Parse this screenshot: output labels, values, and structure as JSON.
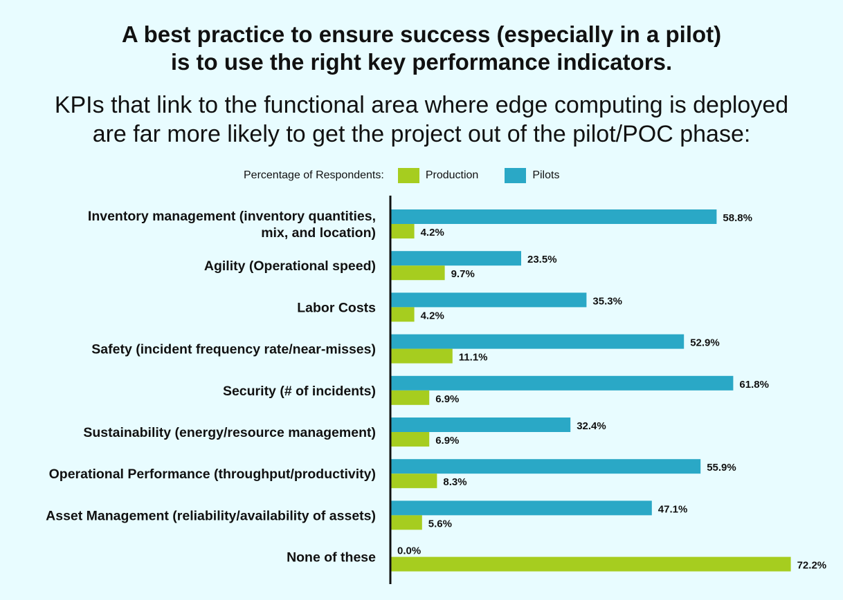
{
  "header": {
    "headline_line1": "A best practice to ensure success (especially in a pilot)",
    "headline_line2": "is to use the right key performance indicators.",
    "subhead_line1": "KPIs that link to the functional area where edge computing is deployed",
    "subhead_line2": "are far more likely to get the project out of the pilot/POC phase:"
  },
  "legend": {
    "title": "Percentage of Respondents:",
    "items": [
      {
        "label": "Production",
        "color": "#a6cd1f"
      },
      {
        "label": "Pilots",
        "color": "#2aa8c6"
      }
    ]
  },
  "chart_data": {
    "type": "bar",
    "orientation": "horizontal",
    "title": "Percentage of Respondents",
    "xlim": [
      0,
      75
    ],
    "categories": [
      [
        "Inventory management (inventory quantities,",
        "mix, and location)"
      ],
      [
        "Agility (Operational speed)"
      ],
      [
        "Labor Costs"
      ],
      [
        "Safety (incident frequency rate/near-misses)"
      ],
      [
        "Security (# of incidents)"
      ],
      [
        "Sustainability (energy/resource management)"
      ],
      [
        "Operational Performance (throughput/productivity)"
      ],
      [
        "Asset Management (reliability/availability of assets)"
      ],
      [
        "None of these"
      ]
    ],
    "series": [
      {
        "name": "Pilots",
        "color": "#2aa8c6",
        "values": [
          58.8,
          23.5,
          35.3,
          52.9,
          61.8,
          32.4,
          55.9,
          47.1,
          0.0
        ],
        "labels": [
          "58.8%",
          "23.5%",
          "35.3%",
          "52.9%",
          "61.8%",
          "32.4%",
          "55.9%",
          "47.1%",
          "0.0%"
        ]
      },
      {
        "name": "Production",
        "color": "#a6cd1f",
        "values": [
          4.2,
          9.7,
          4.2,
          11.1,
          6.9,
          6.9,
          8.3,
          5.6,
          72.2
        ],
        "labels": [
          "4.2%",
          "9.7%",
          "4.2%",
          "11.1%",
          "6.9%",
          "6.9%",
          "8.3%",
          "5.6%",
          "72.2%"
        ]
      }
    ]
  }
}
